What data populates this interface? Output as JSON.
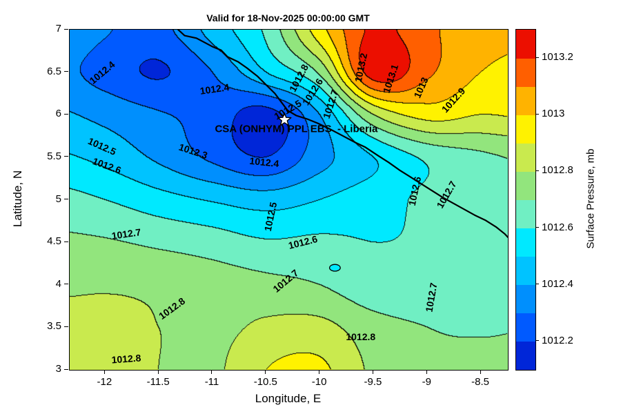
{
  "title": "Valid for 18-Nov-2025 00:00:00 GMT",
  "axes": {
    "xlabel": "Longitude, E",
    "ylabel": "Latitude, N",
    "x_tick_labels": [
      "-12",
      "-11.5",
      "-11",
      "-10.5",
      "-10",
      "-9.5",
      "-9",
      "-8.5"
    ],
    "x_tick_values": [
      -12,
      -11.5,
      -11,
      -10.5,
      -10,
      -9.5,
      -9,
      -8.5
    ],
    "y_tick_labels": [
      "3",
      "3.5",
      "4",
      "4.5",
      "5",
      "5.5",
      "6",
      "6.5",
      "7"
    ],
    "y_tick_values": [
      3,
      3.5,
      4,
      4.5,
      5,
      5.5,
      6,
      6.5,
      7
    ]
  },
  "colorbar": {
    "label": "Surface Pressure, mb",
    "range_min": 1012.1,
    "range_max": 1013.3,
    "tick_labels": [
      "1012.2",
      "1012.4",
      "1012.6",
      "1012.8",
      "1013",
      "1013.2"
    ],
    "tick_values": [
      1012.2,
      1012.4,
      1012.6,
      1012.8,
      1013,
      1013.2
    ]
  },
  "annotation": {
    "label": "CSA (ONHYM) PPL EBS  - Liberia",
    "lon": -10.22,
    "lat": 5.83,
    "star": {
      "lon": -10.33,
      "lat": 5.94
    }
  },
  "chart_data": {
    "type": "heatmap",
    "subtype": "filled_contour",
    "title": "Valid for 18-Nov-2025 00:00:00 GMT",
    "xlabel": "Longitude, E",
    "ylabel": "Latitude, N",
    "zlabel": "Surface Pressure, mb",
    "xlim": [
      -12.33,
      -8.25
    ],
    "ylim": [
      3,
      7
    ],
    "levels": [
      1012.2,
      1012.3,
      1012.4,
      1012.5,
      1012.6,
      1012.7,
      1012.8,
      1012.9,
      1013,
      1013.1,
      1013.2
    ],
    "band_colors": [
      "#0026d8",
      "#005aff",
      "#008ffd",
      "#00c3ff",
      "#00e9ff",
      "#70efc3",
      "#92e57d",
      "#c9ea4e",
      "#fff200",
      "#ffb300",
      "#ff5f00",
      "#ec0f00"
    ],
    "contour_line_color": "#000000",
    "x": [
      -12.5,
      -12,
      -11.5,
      -11,
      -10.5,
      -10,
      -9.5,
      -9,
      -8.5,
      -8
    ],
    "y": [
      3,
      3.5,
      4,
      4.5,
      5,
      5.5,
      6,
      6.5,
      7
    ],
    "values": [
      [
        1012.86,
        1012.84,
        1012.8,
        1012.78,
        1012.9,
        1012.92,
        1012.78,
        1012.72,
        1012.73,
        1012.74
      ],
      [
        1012.84,
        1012.82,
        1012.8,
        1012.77,
        1012.82,
        1012.83,
        1012.74,
        1012.7,
        1012.69,
        1012.7
      ],
      [
        1012.78,
        1012.79,
        1012.78,
        1012.75,
        1012.73,
        1012.7,
        1012.63,
        1012.63,
        1012.66,
        1012.68
      ],
      [
        1012.72,
        1012.71,
        1012.68,
        1012.65,
        1012.61,
        1012.62,
        1012.6,
        1012.61,
        1012.63,
        1012.67
      ],
      [
        1012.64,
        1012.6,
        1012.54,
        1012.49,
        1012.45,
        1012.5,
        1012.56,
        1012.62,
        1012.67,
        1012.72
      ],
      [
        1012.52,
        1012.47,
        1012.38,
        1012.28,
        1012.2,
        1012.36,
        1012.5,
        1012.62,
        1012.68,
        1012.72
      ],
      [
        1012.42,
        1012.37,
        1012.31,
        1012.26,
        1012.16,
        1012.4,
        1012.8,
        1012.94,
        1012.9,
        1012.92
      ],
      [
        1012.34,
        1012.26,
        1012.19,
        1012.3,
        1012.5,
        1012.72,
        1013.26,
        1013.12,
        1013.0,
        1012.96
      ],
      [
        1012.4,
        1012.31,
        1012.27,
        1012.44,
        1012.62,
        1012.96,
        1013.22,
        1013.12,
        1013.05,
        1013.02
      ]
    ],
    "contour_labels": [
      {
        "text": "1012.4",
        "lon": -12.03,
        "lat": 6.5,
        "rot": -40
      },
      {
        "text": "1012.4",
        "lon": -10.98,
        "lat": 6.3,
        "rot": -8
      },
      {
        "text": "1012.8",
        "lon": -10.2,
        "lat": 6.43,
        "rot": -62
      },
      {
        "text": "1012.5",
        "lon": -10.3,
        "lat": 6.06,
        "rot": -30
      },
      {
        "text": "1012.6",
        "lon": -10.07,
        "lat": 6.27,
        "rot": -58
      },
      {
        "text": "1012.7",
        "lon": -9.9,
        "lat": 6.12,
        "rot": -72
      },
      {
        "text": "1013.2",
        "lon": -9.62,
        "lat": 6.55,
        "rot": -78
      },
      {
        "text": "1013.1",
        "lon": -9.34,
        "lat": 6.42,
        "rot": -72
      },
      {
        "text": "1013",
        "lon": -9.06,
        "lat": 6.32,
        "rot": -66
      },
      {
        "text": "1012.9",
        "lon": -8.76,
        "lat": 6.17,
        "rot": -48
      },
      {
        "text": "1012.5",
        "lon": -12.03,
        "lat": 5.63,
        "rot": 24
      },
      {
        "text": "1012.6",
        "lon": -11.98,
        "lat": 5.4,
        "rot": 20
      },
      {
        "text": "1012.3",
        "lon": -11.18,
        "lat": 5.57,
        "rot": 18
      },
      {
        "text": "1012.4",
        "lon": -10.52,
        "lat": 5.44,
        "rot": 6
      },
      {
        "text": "1012.5",
        "lon": -10.46,
        "lat": 4.8,
        "rot": -78
      },
      {
        "text": "1012.6",
        "lon": -10.16,
        "lat": 4.5,
        "rot": -14
      },
      {
        "text": "1012.6",
        "lon": -9.12,
        "lat": 5.1,
        "rot": -78
      },
      {
        "text": "1012.7",
        "lon": -8.82,
        "lat": 5.06,
        "rot": -60
      },
      {
        "text": "1012.7",
        "lon": -11.8,
        "lat": 4.6,
        "rot": -8
      },
      {
        "text": "1012.7",
        "lon": -10.32,
        "lat": 4.05,
        "rot": -40
      },
      {
        "text": "1012.7",
        "lon": -8.96,
        "lat": 3.85,
        "rot": -80
      },
      {
        "text": "1012.8",
        "lon": -11.38,
        "lat": 3.72,
        "rot": -36
      },
      {
        "text": "1012.8",
        "lon": -9.62,
        "lat": 3.39,
        "rot": 0
      },
      {
        "text": "1012.8",
        "lon": -11.8,
        "lat": 3.13,
        "rot": -4
      }
    ],
    "coastline": [
      [
        -11.32,
        7.0
      ],
      [
        -11.26,
        6.93
      ],
      [
        -11.15,
        6.9
      ],
      [
        -11.06,
        6.84
      ],
      [
        -11.0,
        6.8
      ],
      [
        -10.92,
        6.76
      ],
      [
        -10.86,
        6.68
      ],
      [
        -10.76,
        6.62
      ],
      [
        -10.68,
        6.55
      ],
      [
        -10.58,
        6.45
      ],
      [
        -10.5,
        6.35
      ],
      [
        -10.42,
        6.25
      ],
      [
        -10.36,
        6.15
      ],
      [
        -10.3,
        6.05
      ],
      [
        -10.22,
        5.99
      ],
      [
        -10.12,
        5.95
      ],
      [
        -10.02,
        5.9
      ],
      [
        -9.92,
        5.84
      ],
      [
        -9.8,
        5.76
      ],
      [
        -9.68,
        5.68
      ],
      [
        -9.58,
        5.62
      ],
      [
        -9.46,
        5.52
      ],
      [
        -9.36,
        5.44
      ],
      [
        -9.26,
        5.35
      ],
      [
        -9.16,
        5.27
      ],
      [
        -9.06,
        5.19
      ],
      [
        -8.96,
        5.11
      ],
      [
        -8.86,
        5.03
      ],
      [
        -8.76,
        4.96
      ],
      [
        -8.66,
        4.89
      ],
      [
        -8.56,
        4.82
      ],
      [
        -8.46,
        4.76
      ],
      [
        -8.36,
        4.68
      ],
      [
        -8.28,
        4.6
      ],
      [
        -8.25,
        4.56
      ]
    ],
    "spots": [
      {
        "lon": -9.86,
        "lat": 4.2,
        "rx": 0.05,
        "ry": 0.04,
        "fill": "#00e9ff"
      }
    ]
  }
}
